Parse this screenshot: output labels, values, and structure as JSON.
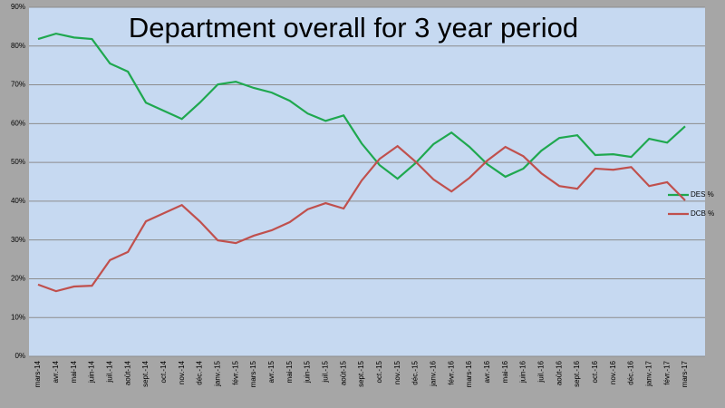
{
  "chart_data": {
    "type": "line",
    "title": "Department overall for 3 year period",
    "categories": [
      "mars-14",
      "avr.-14",
      "mai-14",
      "juin-14",
      "juil.-14",
      "août-14",
      "sept.-14",
      "oct.-14",
      "nov.-14",
      "déc.-14",
      "janv.-15",
      "févr.-15",
      "mars-15",
      "avr.-15",
      "mai-15",
      "juin-15",
      "juil.-15",
      "août-15",
      "sept.-15",
      "oct.-15",
      "nov.-15",
      "déc.-15",
      "janv.-16",
      "févr.-16",
      "mars-16",
      "avr.-16",
      "mai-16",
      "juin-16",
      "juil.-16",
      "août-16",
      "sept.-16",
      "oct.-16",
      "nov.-16",
      "déc.-16",
      "janv.-17",
      "févr.-17",
      "mars-17"
    ],
    "series": [
      {
        "name": "DES %",
        "color": "#1fa84f",
        "values": [
          81.8,
          83.2,
          82.2,
          81.8,
          75.5,
          73.4,
          65.4,
          63.3,
          61.2,
          65.4,
          70.1,
          70.8,
          69.2,
          68,
          65.9,
          62.6,
          60.7,
          62.1,
          54.9,
          49.3,
          45.8,
          49.8,
          54.7,
          57.7,
          54,
          49.5,
          46.3,
          48.4,
          53,
          56.3,
          57,
          51.9,
          52.1,
          51.4,
          56.1,
          55.1,
          59.3
        ]
      },
      {
        "name": "DCB %",
        "color": "#c0504d",
        "values": [
          18.5,
          16.8,
          18,
          18.2,
          24.8,
          26.9,
          34.8,
          36.9,
          39,
          34.8,
          29.9,
          29.2,
          31.1,
          32.5,
          34.6,
          37.9,
          39.5,
          38.1,
          45.3,
          50.9,
          54.2,
          50.2,
          45.6,
          42.5,
          46,
          50.5,
          54,
          51.6,
          47.2,
          43.9,
          43.2,
          48.4,
          48.1,
          48.8,
          43.9,
          44.9,
          40.2
        ]
      }
    ],
    "ylim": [
      0,
      90
    ],
    "yticks": [
      {
        "value": 0,
        "label": "0%"
      },
      {
        "value": 10,
        "label": "10%"
      },
      {
        "value": 20,
        "label": "20%"
      },
      {
        "value": 30,
        "label": "30%"
      },
      {
        "value": 40,
        "label": "40%"
      },
      {
        "value": 50,
        "label": "50%"
      },
      {
        "value": 60,
        "label": "60%"
      },
      {
        "value": 70,
        "label": "70%"
      },
      {
        "value": 80,
        "label": "80%"
      },
      {
        "value": 90,
        "label": "90%"
      }
    ],
    "grid": true,
    "legend": "right"
  }
}
